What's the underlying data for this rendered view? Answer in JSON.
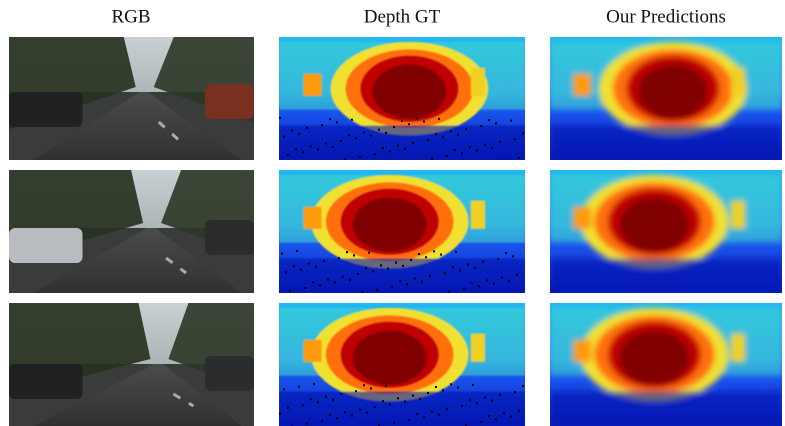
{
  "headers": [
    "RGB",
    "Depth GT",
    "Our Predictions"
  ]
}
